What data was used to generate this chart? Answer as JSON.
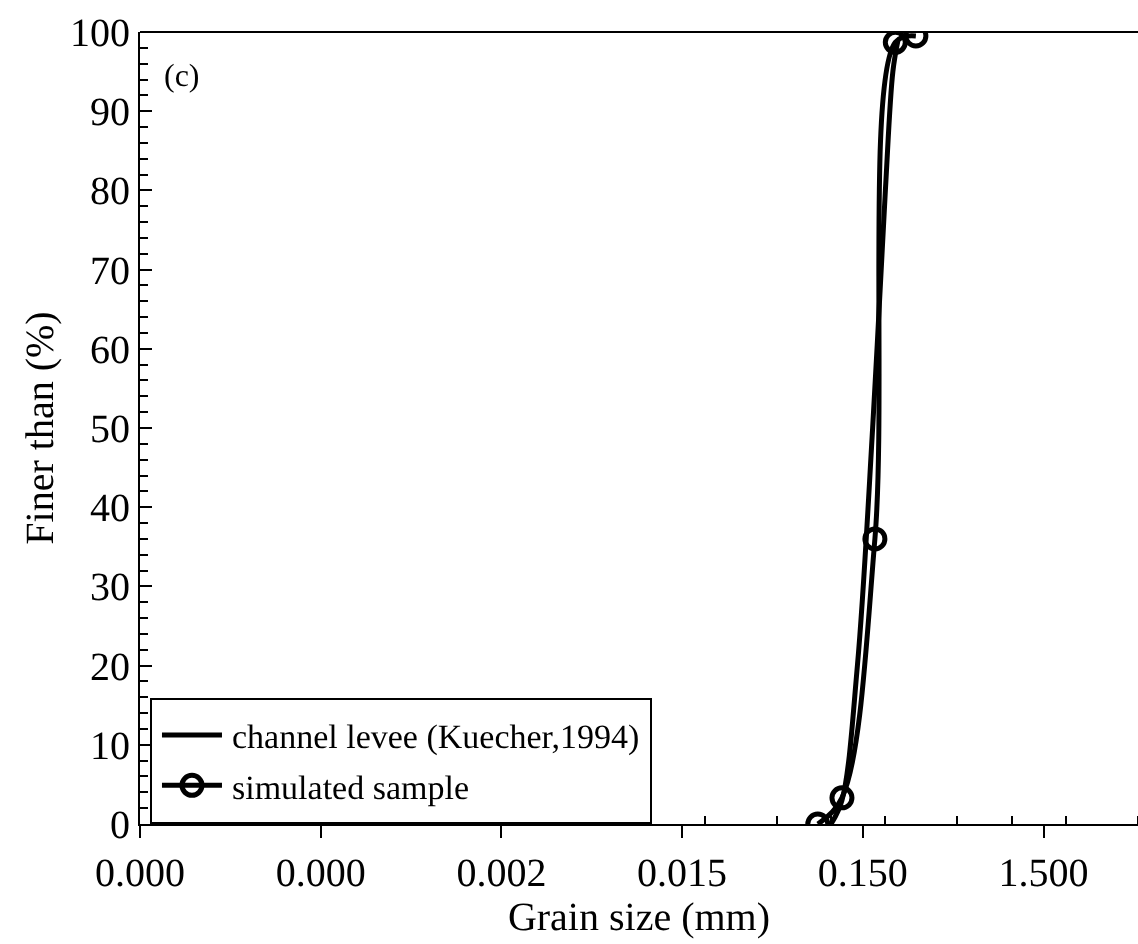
{
  "chart_data": {
    "type": "line",
    "xlabel": "Grain size (mm)",
    "ylabel": "Finer than (%)",
    "annotations": [
      "(c)"
    ],
    "log": "x",
    "xlim": [
      1.5e-05,
      5
    ],
    "xticks": [
      {
        "value": 1.5e-05,
        "label": "0.000"
      },
      {
        "value": 0.00015,
        "label": "0.000"
      },
      {
        "value": 0.0015,
        "label": "0.002"
      },
      {
        "value": 0.015,
        "label": "0.015"
      },
      {
        "value": 0.15,
        "label": "0.150"
      },
      {
        "value": 1.5,
        "label": "1.500"
      }
    ],
    "ylim": [
      0,
      100
    ],
    "yticks": [
      0,
      10,
      20,
      30,
      40,
      50,
      60,
      70,
      80,
      90,
      100
    ],
    "legend": "bottom left",
    "series": [
      {
        "name": "channel levee (Kuecher,1994)",
        "color": "#000000",
        "marker": "none",
        "x": [
          0.1,
          0.115,
          0.14,
          0.17,
          0.2,
          0.22,
          0.235
        ],
        "values": [
          0,
          3,
          20,
          50,
          80,
          95,
          99
        ]
      },
      {
        "name": "simulated sample",
        "color": "#000000",
        "marker": "circle",
        "x": [
          0.0845,
          0.115,
          0.175,
          0.227,
          0.295
        ],
        "values": [
          0,
          3.3,
          36,
          98.7,
          99.5
        ]
      }
    ]
  }
}
